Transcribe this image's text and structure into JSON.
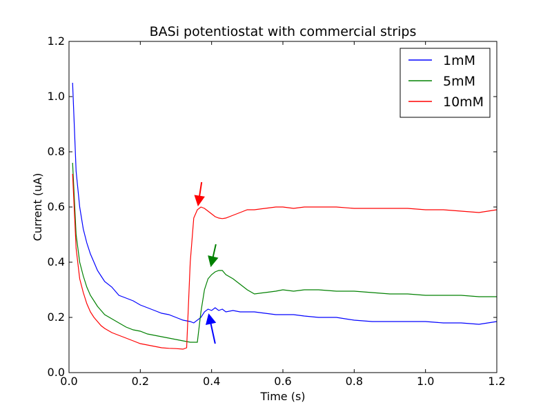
{
  "chart_data": {
    "type": "line",
    "title": "BASi potentiostat with commercial strips",
    "xlabel": "Time (s)",
    "ylabel": "Current (uA)",
    "xlim": [
      0.0,
      1.2
    ],
    "ylim": [
      0.0,
      1.2
    ],
    "xticks": [
      0.0,
      0.2,
      0.4,
      0.6,
      0.8,
      1.0,
      1.2
    ],
    "yticks": [
      0.0,
      0.2,
      0.4,
      0.6,
      0.8,
      1.0,
      1.2
    ],
    "xtick_labels": [
      "0.0",
      "0.2",
      "0.4",
      "0.6",
      "0.8",
      "1.0",
      "1.2"
    ],
    "ytick_labels": [
      "0.0",
      "0.2",
      "0.4",
      "0.6",
      "0.8",
      "1.0",
      "1.2"
    ],
    "legend_position": "top-right",
    "grid": false,
    "series": [
      {
        "name": "1mM",
        "color": "#0000ff",
        "x": [
          0.01,
          0.02,
          0.03,
          0.04,
          0.05,
          0.06,
          0.07,
          0.08,
          0.09,
          0.1,
          0.12,
          0.14,
          0.16,
          0.18,
          0.2,
          0.22,
          0.24,
          0.26,
          0.28,
          0.3,
          0.32,
          0.34,
          0.35,
          0.37,
          0.38,
          0.39,
          0.4,
          0.41,
          0.42,
          0.43,
          0.44,
          0.46,
          0.48,
          0.5,
          0.52,
          0.55,
          0.58,
          0.6,
          0.63,
          0.66,
          0.7,
          0.75,
          0.8,
          0.85,
          0.9,
          0.95,
          1.0,
          1.05,
          1.1,
          1.15,
          1.2
        ],
        "y": [
          1.05,
          0.73,
          0.6,
          0.52,
          0.47,
          0.43,
          0.4,
          0.37,
          0.35,
          0.33,
          0.31,
          0.28,
          0.27,
          0.26,
          0.245,
          0.235,
          0.225,
          0.215,
          0.21,
          0.2,
          0.19,
          0.185,
          0.18,
          0.2,
          0.22,
          0.23,
          0.225,
          0.235,
          0.225,
          0.23,
          0.22,
          0.225,
          0.22,
          0.22,
          0.22,
          0.215,
          0.21,
          0.21,
          0.21,
          0.205,
          0.2,
          0.2,
          0.19,
          0.185,
          0.185,
          0.185,
          0.185,
          0.18,
          0.18,
          0.175,
          0.185
        ]
      },
      {
        "name": "5mM",
        "color": "#008000",
        "x": [
          0.01,
          0.02,
          0.03,
          0.04,
          0.05,
          0.06,
          0.07,
          0.08,
          0.09,
          0.1,
          0.12,
          0.14,
          0.16,
          0.18,
          0.2,
          0.22,
          0.24,
          0.26,
          0.28,
          0.3,
          0.32,
          0.34,
          0.36,
          0.37,
          0.38,
          0.39,
          0.4,
          0.41,
          0.42,
          0.43,
          0.44,
          0.46,
          0.48,
          0.5,
          0.52,
          0.55,
          0.58,
          0.6,
          0.63,
          0.66,
          0.7,
          0.75,
          0.8,
          0.85,
          0.9,
          0.95,
          1.0,
          1.05,
          1.1,
          1.15,
          1.2
        ],
        "y": [
          0.76,
          0.5,
          0.4,
          0.35,
          0.31,
          0.28,
          0.26,
          0.24,
          0.225,
          0.21,
          0.195,
          0.18,
          0.165,
          0.155,
          0.15,
          0.14,
          0.135,
          0.13,
          0.125,
          0.12,
          0.115,
          0.11,
          0.11,
          0.22,
          0.3,
          0.34,
          0.355,
          0.365,
          0.37,
          0.37,
          0.355,
          0.34,
          0.32,
          0.3,
          0.285,
          0.29,
          0.295,
          0.3,
          0.295,
          0.3,
          0.3,
          0.295,
          0.295,
          0.29,
          0.285,
          0.285,
          0.28,
          0.28,
          0.28,
          0.275,
          0.275
        ]
      },
      {
        "name": "10mM",
        "color": "#ff0000",
        "x": [
          0.01,
          0.02,
          0.03,
          0.04,
          0.05,
          0.06,
          0.07,
          0.08,
          0.09,
          0.1,
          0.12,
          0.14,
          0.16,
          0.18,
          0.2,
          0.22,
          0.24,
          0.26,
          0.28,
          0.3,
          0.32,
          0.33,
          0.34,
          0.35,
          0.36,
          0.37,
          0.38,
          0.39,
          0.4,
          0.41,
          0.42,
          0.43,
          0.44,
          0.46,
          0.48,
          0.5,
          0.52,
          0.55,
          0.58,
          0.6,
          0.63,
          0.66,
          0.7,
          0.75,
          0.8,
          0.85,
          0.9,
          0.95,
          1.0,
          1.05,
          1.1,
          1.15,
          1.2
        ],
        "y": [
          0.72,
          0.45,
          0.34,
          0.29,
          0.25,
          0.22,
          0.2,
          0.185,
          0.17,
          0.16,
          0.145,
          0.135,
          0.125,
          0.115,
          0.105,
          0.1,
          0.095,
          0.09,
          0.088,
          0.087,
          0.085,
          0.09,
          0.4,
          0.56,
          0.59,
          0.6,
          0.595,
          0.585,
          0.575,
          0.565,
          0.56,
          0.558,
          0.56,
          0.57,
          0.58,
          0.59,
          0.59,
          0.595,
          0.6,
          0.6,
          0.595,
          0.6,
          0.6,
          0.6,
          0.595,
          0.595,
          0.595,
          0.595,
          0.59,
          0.59,
          0.585,
          0.58,
          0.59
        ]
      }
    ],
    "annotations": [
      {
        "type": "arrow",
        "color": "#ff0000",
        "from": [
          0.372,
          0.69
        ],
        "to": [
          0.362,
          0.605
        ]
      },
      {
        "type": "arrow",
        "color": "#008000",
        "from": [
          0.412,
          0.465
        ],
        "to": [
          0.398,
          0.385
        ]
      },
      {
        "type": "arrow",
        "color": "#0000ff",
        "from": [
          0.41,
          0.105
        ],
        "to": [
          0.392,
          0.212
        ]
      }
    ]
  }
}
